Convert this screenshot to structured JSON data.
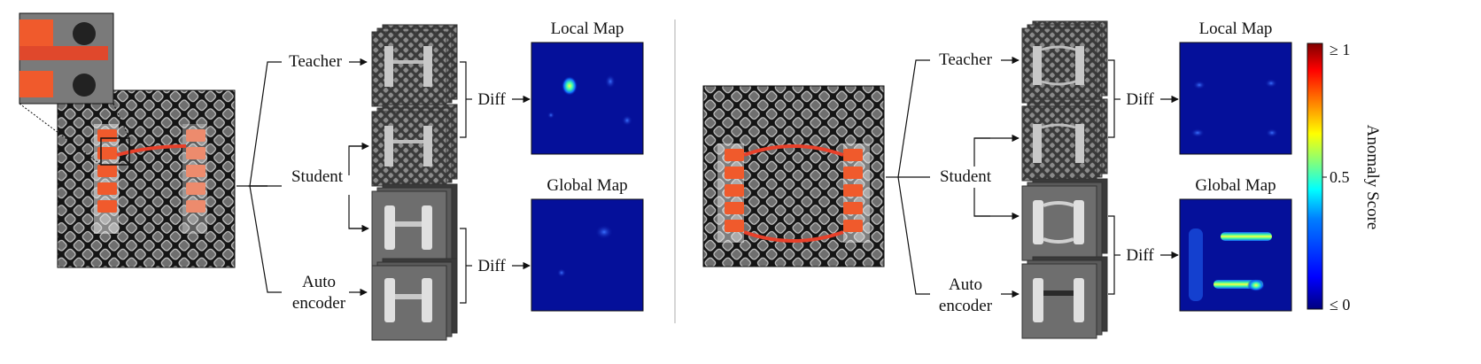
{
  "panels": [
    {
      "id": "left",
      "labels": {
        "teacher": "Teacher",
        "student": "Student",
        "auto_line1": "Auto",
        "auto_line2": "encoder",
        "diff_top": "Diff",
        "diff_bottom": "Diff",
        "local_map": "Local Map",
        "global_map": "Global Map"
      }
    },
    {
      "id": "right",
      "labels": {
        "teacher": "Teacher",
        "student": "Student",
        "auto_line1": "Auto",
        "auto_line2": "encoder",
        "diff_top": "Diff",
        "diff_bottom": "Diff",
        "local_map": "Local Map",
        "global_map": "Global Map"
      }
    }
  ],
  "colorbar": {
    "top_label": "≥ 1",
    "mid_label": "0.5",
    "bottom_label": "≤ 0",
    "axis_label": "Anomaly Score",
    "colormap": [
      "#00007f",
      "#0000ff",
      "#007fff",
      "#00ffff",
      "#7fff7f",
      "#ffff00",
      "#ff7f00",
      "#ff0000",
      "#7f0000"
    ]
  },
  "colors": {
    "map_background": "#05109a",
    "object_orange": "#f05a2c",
    "mesh_dark": "#1c1c1c"
  }
}
